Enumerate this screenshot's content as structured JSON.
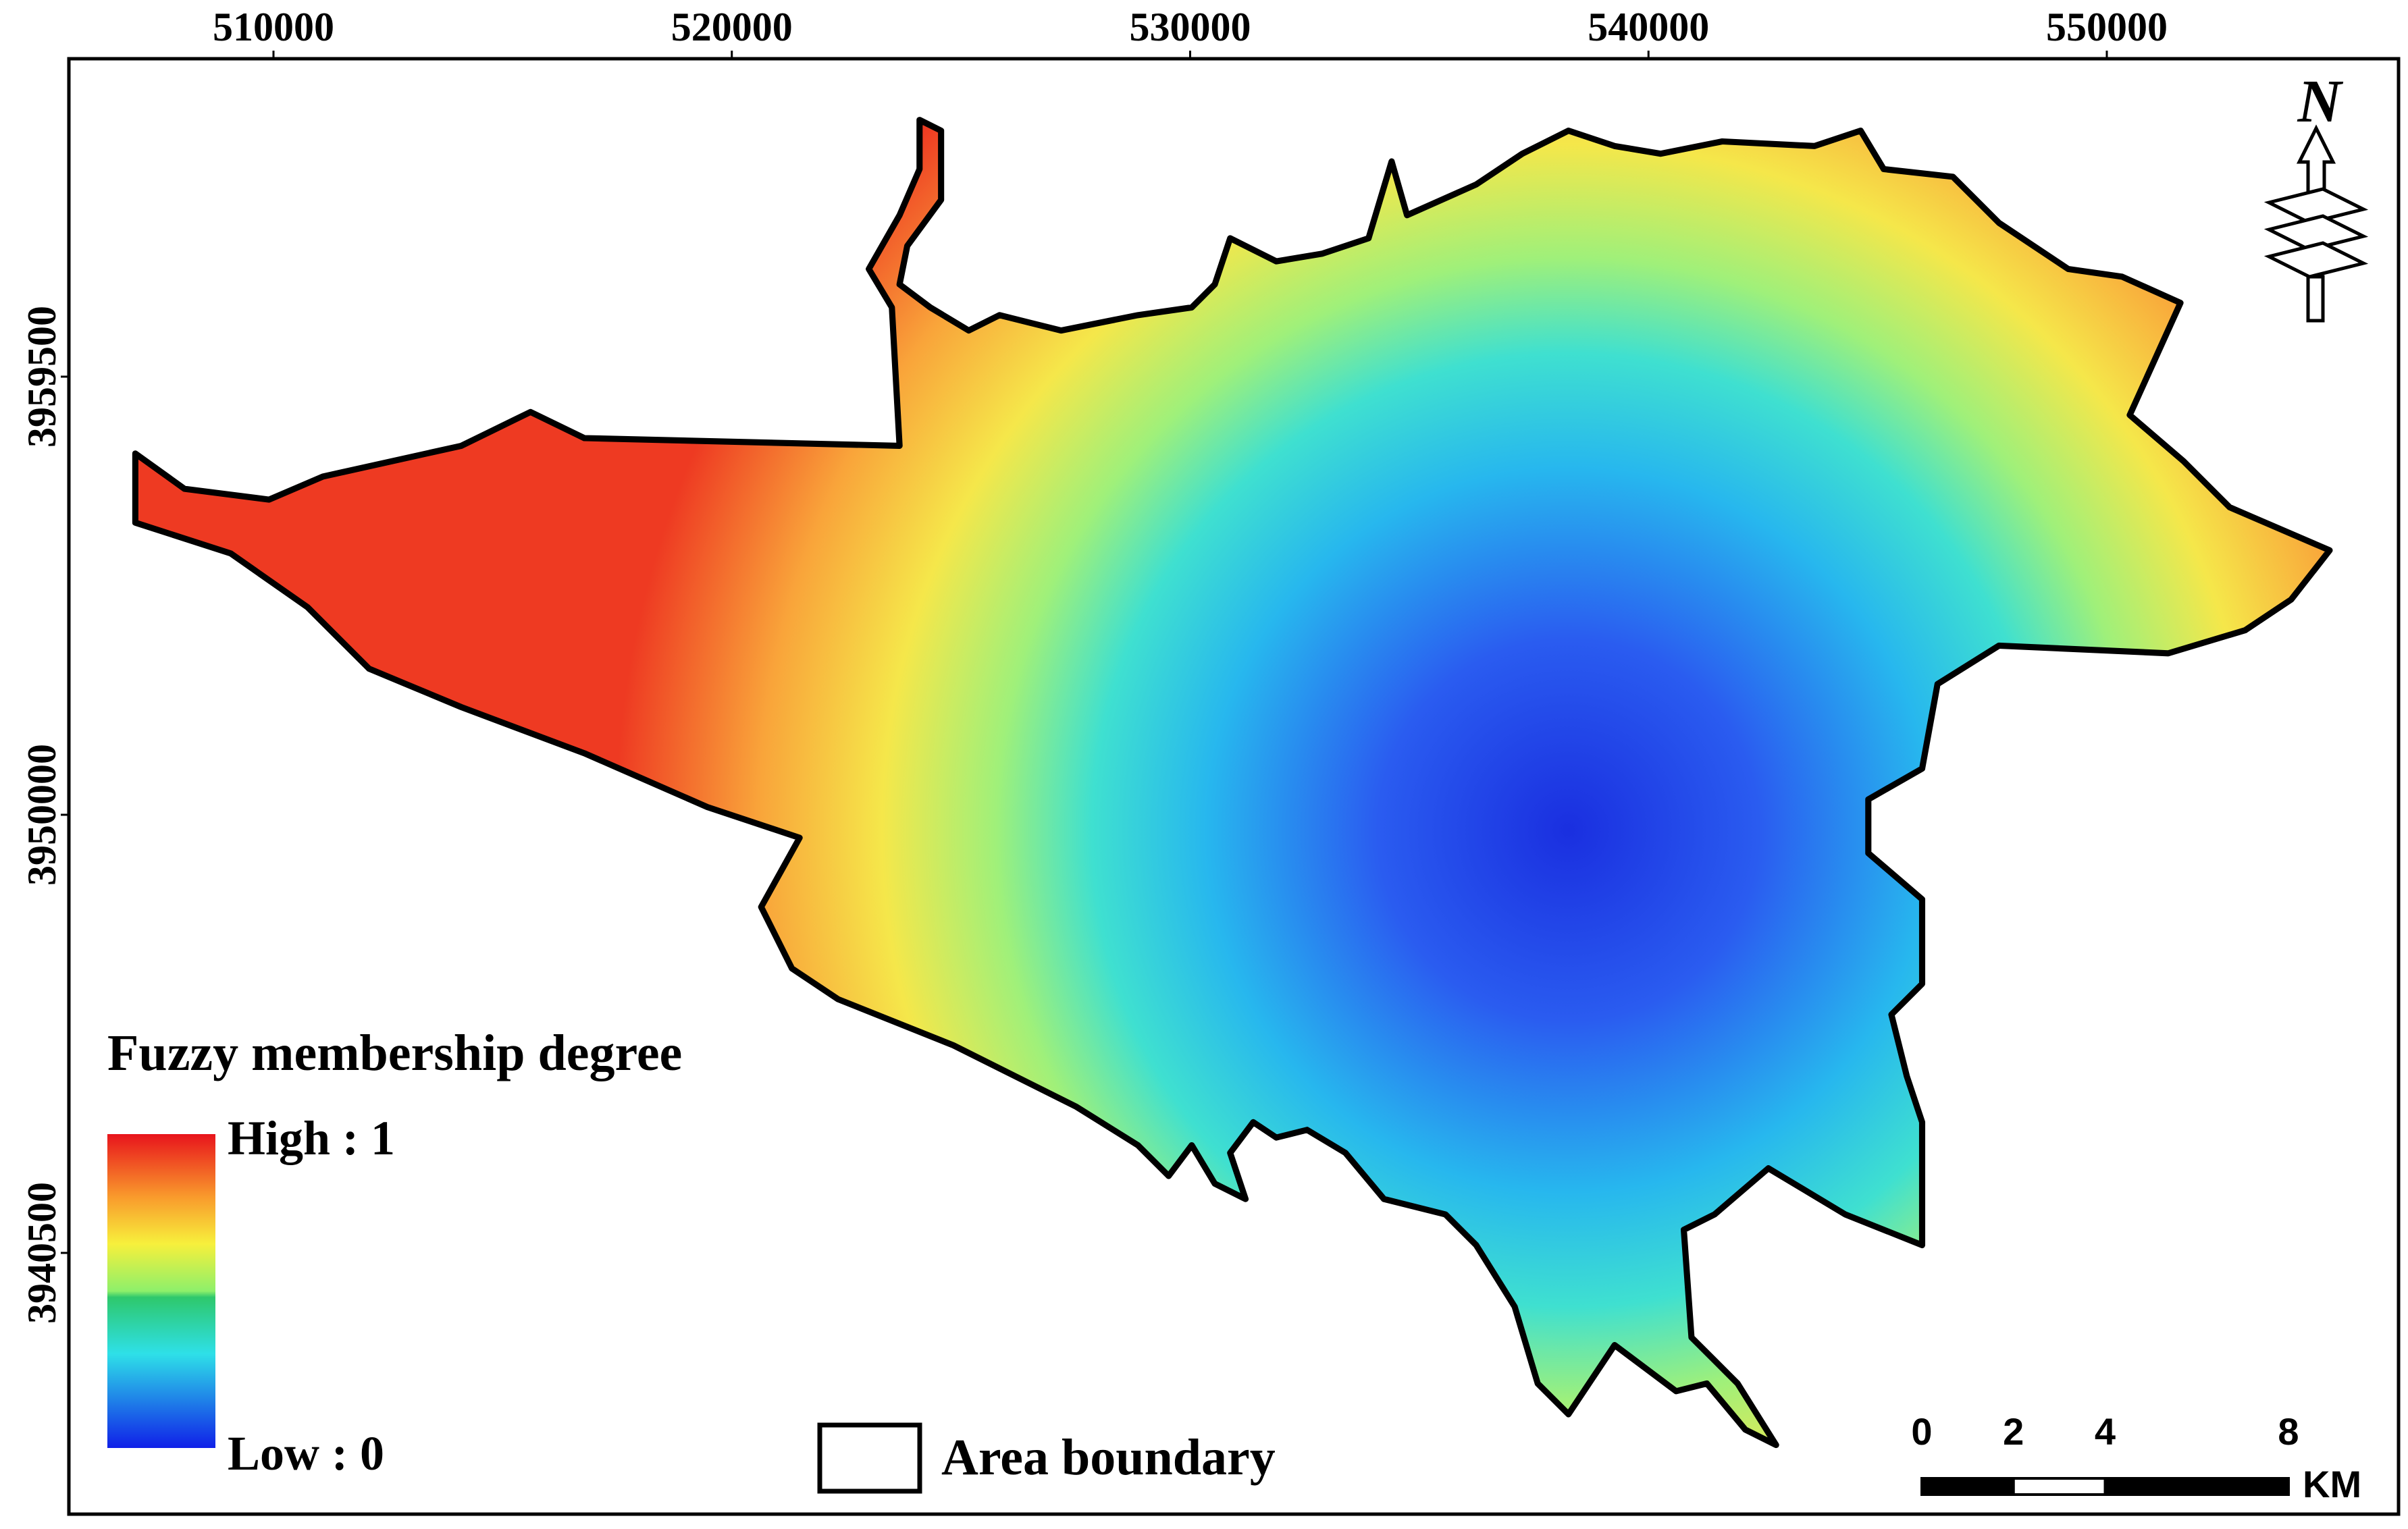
{
  "map": {
    "frame": {
      "xlim": [
        505536,
        556365
      ],
      "ylim": [
        3934835,
        3966394
      ],
      "xticks": [
        510000,
        520000,
        530000,
        540000,
        550000
      ],
      "yticks": [
        3940500,
        3950000,
        3959500
      ]
    },
    "north_arrow": "N",
    "legend": {
      "title": "Fuzzy membership degree",
      "high": "High : 1",
      "low": "Low : 0",
      "boundary": "Area boundary"
    },
    "scale_bar": {
      "ticks": [
        0,
        2,
        4,
        8
      ],
      "unit": "KM"
    }
  }
}
